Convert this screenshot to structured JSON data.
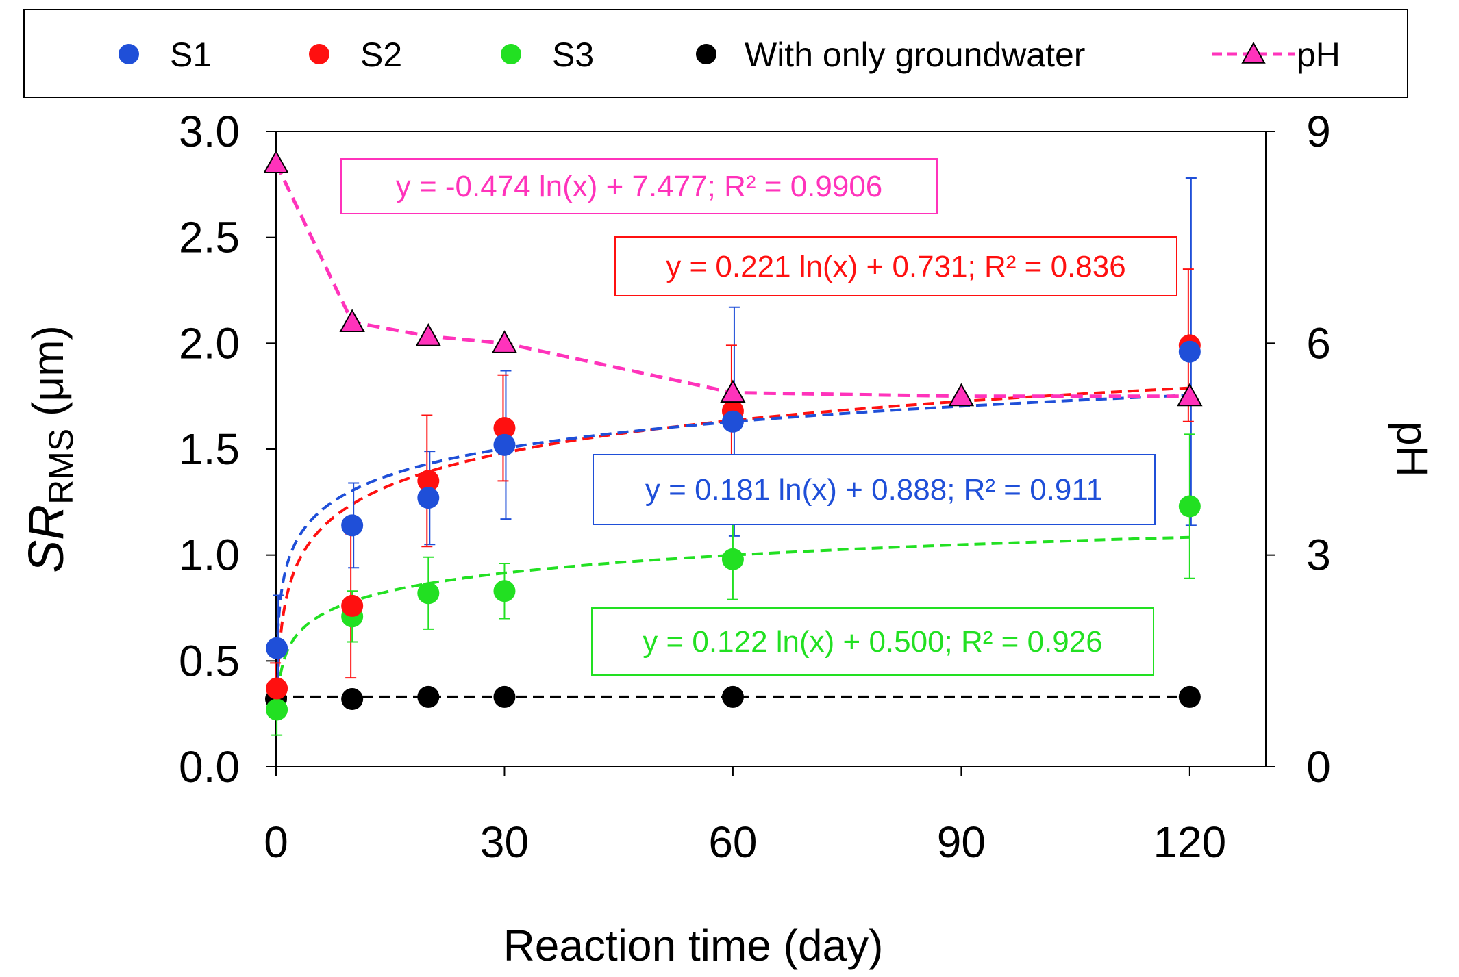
{
  "chart_data": {
    "type": "scatter",
    "xlabel": "Reaction time (day)",
    "ylabel_main": "SR",
    "ylabel_sub": "RMS",
    "ylabel_unit": " (μm)",
    "y2label": "pH",
    "xlim": [
      0,
      130
    ],
    "ylim": [
      0,
      3
    ],
    "y2lim": [
      0,
      9
    ],
    "xticks": [
      0,
      30,
      60,
      90,
      120
    ],
    "xtick_labels": [
      "0",
      "30",
      "60",
      "90",
      "120"
    ],
    "yticks": [
      0,
      0.5,
      1,
      1.5,
      2,
      2.5,
      3
    ],
    "ytick_labels": [
      "0.0",
      "0.5",
      "1.0",
      "1.5",
      "2.0",
      "2.5",
      "3.0"
    ],
    "y2ticks": [
      0,
      3,
      6,
      9
    ],
    "y2tick_labels": [
      "0",
      "3",
      "6",
      "9"
    ],
    "legend_position": "top",
    "series": [
      {
        "name": "S1",
        "key": "s1",
        "color": "#1f4fd8",
        "x": [
          0.1,
          10,
          20,
          30,
          60,
          120
        ],
        "y": [
          0.56,
          1.14,
          1.27,
          1.52,
          1.63,
          1.96
        ],
        "err": [
          0.25,
          0.2,
          0.22,
          0.35,
          0.54,
          0.82
        ],
        "fit": {
          "a": 0.181,
          "b": 0.888,
          "label": "y = 0.181 ln(x) + 0.888; R² = 0.911"
        }
      },
      {
        "name": "S2",
        "key": "s2",
        "color": "#ff1010",
        "x": [
          0.1,
          10,
          20,
          30,
          60,
          120
        ],
        "y": [
          0.37,
          0.76,
          1.35,
          1.6,
          1.68,
          1.99
        ],
        "err": [
          0.12,
          0.34,
          0.31,
          0.25,
          0.31,
          0.36
        ],
        "fit": {
          "a": 0.221,
          "b": 0.731,
          "label": "y = 0.221 ln(x) + 0.731; R² = 0.836"
        }
      },
      {
        "name": "S3",
        "key": "s3",
        "color": "#22e022",
        "x": [
          0.1,
          10,
          20,
          30,
          60,
          120
        ],
        "y": [
          0.27,
          0.71,
          0.82,
          0.83,
          0.98,
          1.23
        ],
        "err": [
          0.12,
          0.12,
          0.17,
          0.13,
          0.19,
          0.34
        ],
        "fit": {
          "a": 0.122,
          "b": 0.5,
          "label": "y = 0.122 ln(x) + 0.500; R² = 0.926"
        }
      },
      {
        "name": "With only groundwater",
        "key": "gw",
        "color": "#000000",
        "x": [
          0,
          10,
          20,
          30,
          60,
          120
        ],
        "y": [
          0.32,
          0.32,
          0.33,
          0.33,
          0.33,
          0.33
        ]
      },
      {
        "name": "pH",
        "key": "ph",
        "color": "#ff33bb",
        "axis": "right",
        "x": [
          0,
          10,
          20,
          30,
          60,
          90,
          120
        ],
        "y": [
          8.55,
          6.3,
          6.1,
          6.0,
          5.3,
          5.25,
          5.25
        ],
        "fit": {
          "a": -0.474,
          "b": 7.477,
          "label": "y = -0.474 ln(x) + 7.477; R² = 0.9906"
        }
      }
    ]
  }
}
